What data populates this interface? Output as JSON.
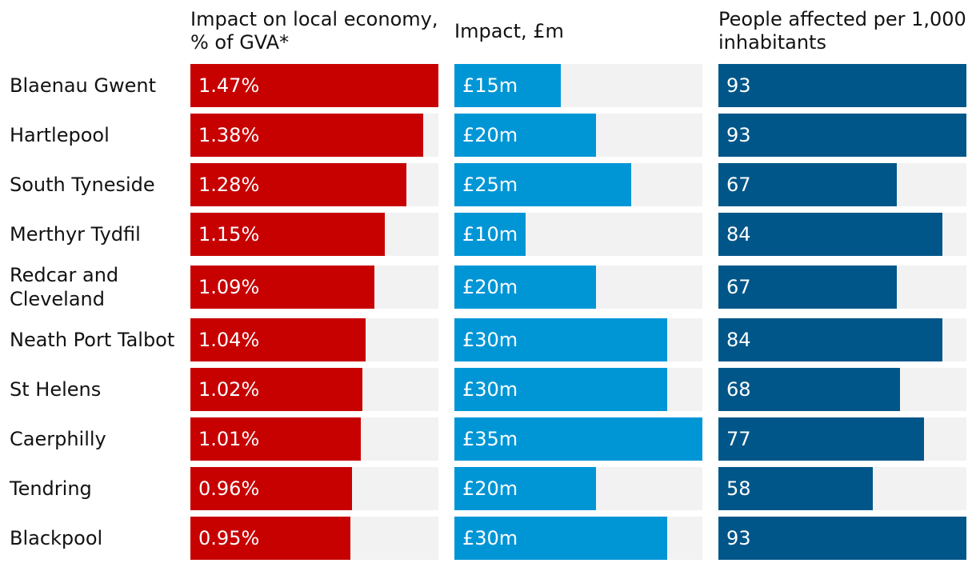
{
  "chart_data": {
    "type": "bar",
    "categories": [
      "Blaenau Gwent",
      "Hartlepool",
      "South Tyneside",
      "Merthyr Tydfil",
      "Redcar and Cleveland",
      "Neath Port Talbot",
      "St Helens",
      "Caerphilly",
      "Tendring",
      "Blackpool"
    ],
    "series": [
      {
        "name": "Impact on local economy, % of GVA*",
        "values": [
          1.47,
          1.38,
          1.28,
          1.15,
          1.09,
          1.04,
          1.02,
          1.01,
          0.96,
          0.95
        ],
        "labels": [
          "1.47%",
          "1.38%",
          "1.28%",
          "1.15%",
          "1.09%",
          "1.04%",
          "1.02%",
          "1.01%",
          "0.96%",
          "0.95%"
        ],
        "max": 1.47,
        "color": "#c70000"
      },
      {
        "name": "Impact, £m",
        "values": [
          15,
          20,
          25,
          10,
          20,
          30,
          30,
          35,
          20,
          30
        ],
        "labels": [
          "£15m",
          "£20m",
          "£25m",
          "£10m",
          "£20m",
          "£30m",
          "£30m",
          "£35m",
          "£20m",
          "£30m"
        ],
        "max": 35,
        "color": "#0096d6"
      },
      {
        "name": "People affected per 1,000 inhabitants",
        "values": [
          93,
          93,
          67,
          84,
          67,
          84,
          68,
          77,
          58,
          93
        ],
        "labels": [
          "93",
          "93",
          "67",
          "84",
          "67",
          "84",
          "68",
          "77",
          "58",
          "93"
        ],
        "max": 93,
        "color": "#005689"
      }
    ],
    "track_color": "#f2f2f2"
  },
  "headers": {
    "col1_line1": "Impact on local economy,",
    "col1_line2": "% of GVA*",
    "col2": "Impact, £m",
    "col3_line1": "People affected per 1,000",
    "col3_line2": "inhabitants"
  },
  "rows": [
    {
      "label": "Blaenau Gwent"
    },
    {
      "label": "Hartlepool"
    },
    {
      "label": "South Tyneside"
    },
    {
      "label": "Merthyr Tydfil"
    },
    {
      "label_line1": "Redcar and",
      "label_line2": "Cleveland"
    },
    {
      "label": "Neath Port Talbot"
    },
    {
      "label": "St Helens"
    },
    {
      "label": "Caerphilly"
    },
    {
      "label": "Tendring"
    },
    {
      "label": "Blackpool"
    }
  ]
}
